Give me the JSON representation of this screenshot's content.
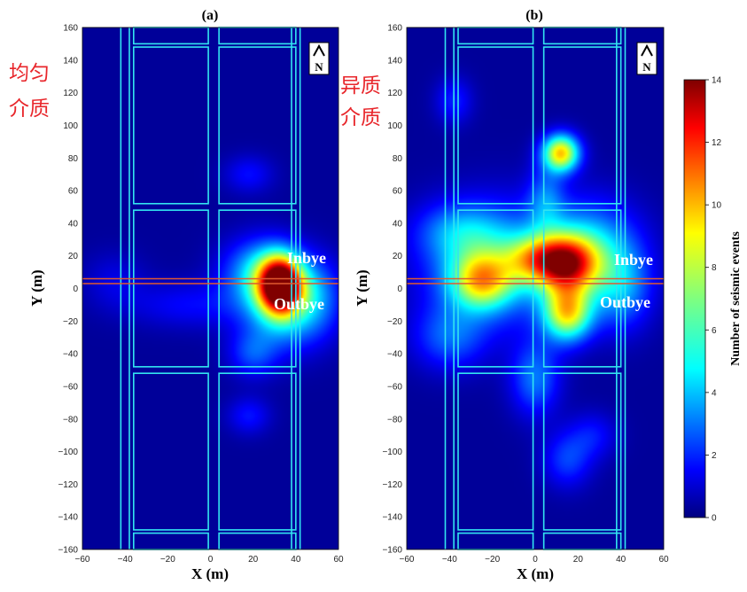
{
  "chart_data": [
    {
      "type": "heatmap",
      "panel_title": "(a)",
      "side_label": "均匀\n介质",
      "xlabel": "X (m)",
      "ylabel": "Y (m)",
      "xlim": [
        -60,
        60
      ],
      "ylim": [
        -160,
        160
      ],
      "x_ticks": [
        -60,
        -40,
        -20,
        0,
        20,
        40,
        60
      ],
      "y_ticks": [
        -160,
        -140,
        -120,
        -100,
        -80,
        -60,
        -40,
        -20,
        0,
        20,
        40,
        60,
        80,
        100,
        120,
        140,
        160
      ],
      "north_arrow": "N",
      "annotations": [
        "Inbye",
        "Outbye"
      ],
      "hotspots": [
        {
          "x": 33,
          "y": 2,
          "value": 14,
          "sx": 7,
          "sy": 12
        },
        {
          "x": 24,
          "y": 10,
          "value": 4.5,
          "sx": 12,
          "sy": 14
        },
        {
          "x": 36,
          "y": -15,
          "value": 4,
          "sx": 14,
          "sy": 16
        },
        {
          "x": 20,
          "y": -40,
          "value": 2.2,
          "sx": 8,
          "sy": 10
        },
        {
          "x": 18,
          "y": -78,
          "value": 1.6,
          "sx": 7,
          "sy": 8
        },
        {
          "x": 18,
          "y": 70,
          "value": 1.5,
          "sx": 8,
          "sy": 8
        },
        {
          "x": -10,
          "y": -10,
          "value": 1.4,
          "sx": 20,
          "sy": 10
        },
        {
          "x": -45,
          "y": 5,
          "value": 1.0,
          "sx": 10,
          "sy": 12
        },
        {
          "x": 50,
          "y": 0,
          "value": 2.0,
          "sx": 8,
          "sy": 15
        }
      ]
    },
    {
      "type": "heatmap",
      "panel_title": "(b)",
      "side_label": "异质\n介质",
      "xlabel": "X (m)",
      "ylabel": "Y (m)",
      "xlim": [
        -60,
        60
      ],
      "ylim": [
        -160,
        160
      ],
      "x_ticks": [
        -60,
        -40,
        -20,
        0,
        20,
        40,
        60
      ],
      "y_ticks": [
        -160,
        -140,
        -120,
        -100,
        -80,
        -60,
        -40,
        -20,
        0,
        20,
        40,
        60,
        80,
        100,
        120,
        140,
        160
      ],
      "north_arrow": "N",
      "annotations": [
        "Inbye",
        "Outbye"
      ],
      "hotspots": [
        {
          "x": 12,
          "y": 83,
          "value": 9,
          "sx": 6,
          "sy": 8
        },
        {
          "x": 15,
          "y": 15,
          "value": 9,
          "sx": 10,
          "sy": 12
        },
        {
          "x": 15,
          "y": -15,
          "value": 8,
          "sx": 8,
          "sy": 12
        },
        {
          "x": -25,
          "y": 5,
          "value": 6.5,
          "sx": 10,
          "sy": 12
        },
        {
          "x": 0,
          "y": 18,
          "value": 5,
          "sx": 10,
          "sy": 10
        },
        {
          "x": -20,
          "y": 15,
          "value": 4,
          "sx": 22,
          "sy": 25
        },
        {
          "x": 25,
          "y": 25,
          "value": 4,
          "sx": 16,
          "sy": 20
        },
        {
          "x": 0,
          "y": -55,
          "value": 3,
          "sx": 8,
          "sy": 16
        },
        {
          "x": 15,
          "y": -105,
          "value": 2.2,
          "sx": 8,
          "sy": 12
        },
        {
          "x": 27,
          "y": -90,
          "value": 1.5,
          "sx": 8,
          "sy": 10
        },
        {
          "x": -40,
          "y": -30,
          "value": 2.5,
          "sx": 12,
          "sy": 14
        },
        {
          "x": -35,
          "y": 35,
          "value": 2.5,
          "sx": 14,
          "sy": 12
        },
        {
          "x": -38,
          "y": 115,
          "value": 1.8,
          "sx": 6,
          "sy": 10
        },
        {
          "x": 5,
          "y": 55,
          "value": 2.5,
          "sx": 6,
          "sy": 14
        },
        {
          "x": 40,
          "y": 0,
          "value": 3.2,
          "sx": 10,
          "sy": 18
        }
      ]
    }
  ],
  "colorbar": {
    "label": "Number of seismic events",
    "min": 0,
    "max": 14,
    "ticks": [
      0,
      2,
      4,
      6,
      8,
      10,
      12,
      14
    ],
    "colormap": "jet"
  },
  "mine_layout": {
    "entry_x": [
      -40,
      40
    ],
    "pillar_rects_x": [
      [
        -36,
        -1
      ],
      [
        4,
        40
      ]
    ],
    "pillar_rects_y": [
      [
        -160,
        -150
      ],
      [
        -148,
        -52
      ],
      [
        -48,
        48
      ],
      [
        52,
        148
      ],
      [
        150,
        160
      ]
    ],
    "longwall_lines_y": [
      3,
      6
    ],
    "outline_color": "#33e5f0",
    "longwall_color": "#e05a30"
  }
}
